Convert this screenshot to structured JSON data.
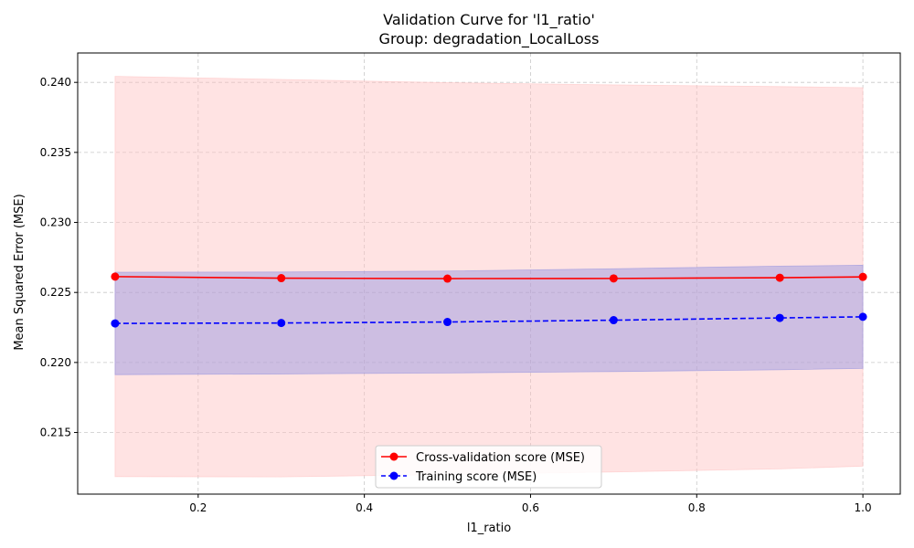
{
  "chart_data": {
    "type": "line",
    "title": "Validation Curve for 'l1_ratio'",
    "subtitle": "Group: degradation_LocalLoss",
    "xlabel": "l1_ratio",
    "ylabel": "Mean Squared Error (MSE)",
    "xlim": [
      0.055,
      1.045
    ],
    "ylim": [
      0.2106,
      0.2421
    ],
    "xticks": [
      0.2,
      0.4,
      0.6,
      0.8,
      1.0
    ],
    "xtick_labels": [
      "0.2",
      "0.4",
      "0.6",
      "0.8",
      "1.0"
    ],
    "yticks": [
      0.215,
      0.22,
      0.225,
      0.23,
      0.235,
      0.24
    ],
    "ytick_labels": [
      "0.215",
      "0.220",
      "0.225",
      "0.230",
      "0.235",
      "0.240"
    ],
    "grid": true,
    "legend_position": "bottom-center",
    "x": [
      0.1,
      0.3,
      0.5,
      0.7,
      0.9,
      1.0
    ],
    "series": [
      {
        "name": "Cross-validation score (MSE)",
        "color": "#ff0000",
        "band_color": "#ffc0c0",
        "linestyle": "solid",
        "values": [
          0.22613,
          0.22602,
          0.22599,
          0.226,
          0.22605,
          0.22611
        ],
        "lower": [
          0.21185,
          0.21183,
          0.212,
          0.21218,
          0.2124,
          0.2126
        ],
        "upper": [
          0.24043,
          0.24021,
          0.23998,
          0.23982,
          0.2397,
          0.23962
        ]
      },
      {
        "name": "Training score (MSE)",
        "color": "#0000ff",
        "band_color": "#9090e0",
        "linestyle": "dashed",
        "values": [
          0.22279,
          0.22282,
          0.22289,
          0.22302,
          0.22318,
          0.22326
        ],
        "lower": [
          0.21913,
          0.21918,
          0.21925,
          0.21935,
          0.21948,
          0.21958
        ],
        "upper": [
          0.22645,
          0.22646,
          0.22653,
          0.22669,
          0.22688,
          0.22694
        ]
      }
    ]
  }
}
